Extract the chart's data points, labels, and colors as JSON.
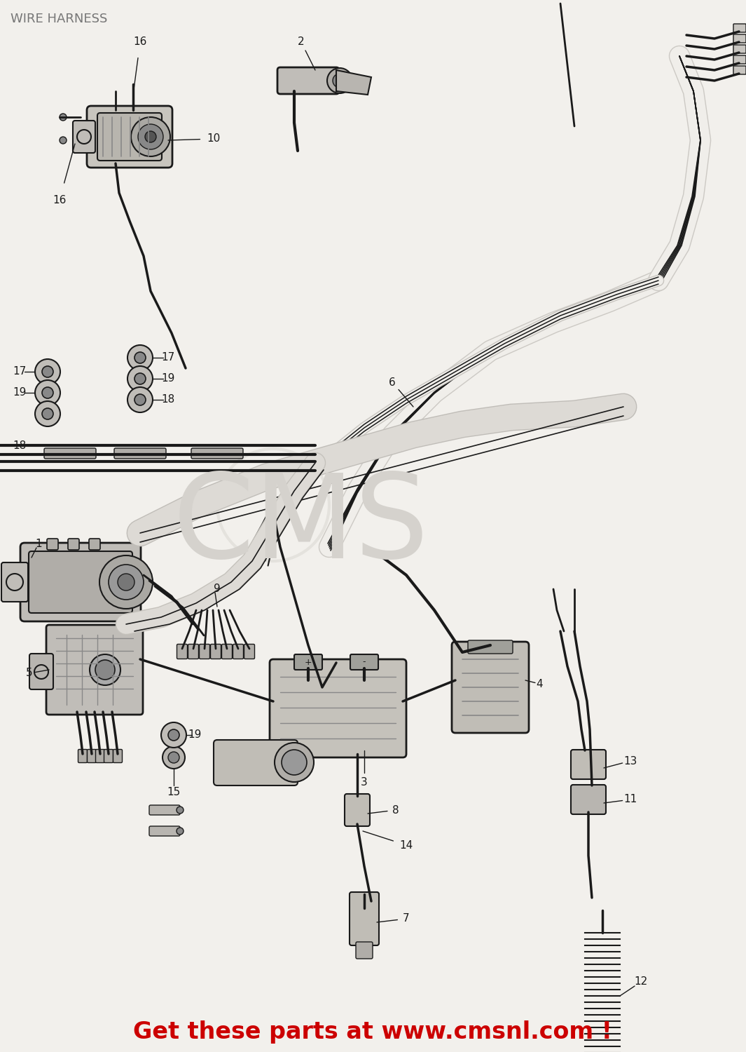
{
  "title": "WIRE HARNESS",
  "footer": "Get these parts at www.cmsnl.com !",
  "footer_color": "#cc0000",
  "background_color": "#f2f0ec",
  "title_color": "#777777",
  "title_fontsize": 14,
  "footer_fontsize": 24,
  "dc": "#1a1a1a",
  "lc": "#e8e6e2"
}
